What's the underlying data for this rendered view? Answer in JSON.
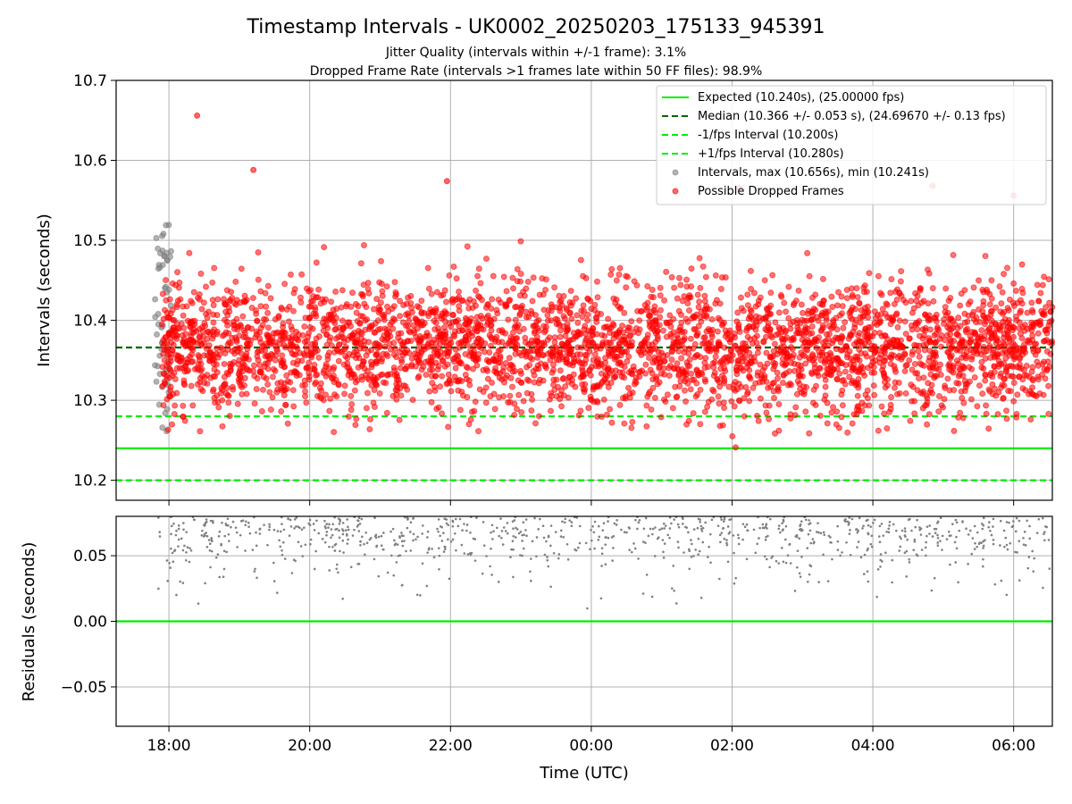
{
  "chart_data": [
    {
      "type": "scatter",
      "title": "Timestamp Intervals - UK0002_20250203_175133_945391",
      "subtitle_1": "Jitter Quality (intervals within +/-1 frame): 3.1%",
      "subtitle_2": "Dropped Frame Rate (intervals >1 frames late within 50 FF files): 98.9%",
      "ylabel": "Intervals (seconds)",
      "ylim": [
        10.175,
        10.7
      ],
      "xlim_hours": [
        17.25,
        30.55
      ],
      "yticks": [
        "10.2",
        "10.3",
        "10.4",
        "10.5",
        "10.6",
        "10.7"
      ],
      "grid": true,
      "legend_location": "upper right",
      "reference_lines": [
        {
          "name": "Expected (10.240s), (25.00000 fps)",
          "y": 10.24,
          "style": "solid",
          "color": "#00ee00"
        },
        {
          "name": "Median (10.366 +/- 0.053 s), (24.69670 +/- 0.13 fps)",
          "y": 10.366,
          "style": "dashed",
          "color": "#006400"
        },
        {
          "name": "-1/fps Interval (10.200s)",
          "y": 10.2,
          "style": "dashed",
          "color": "#00ee00"
        },
        {
          "name": "+1/fps Interval (10.280s)",
          "y": 10.28,
          "style": "dashed",
          "color": "#00ee00"
        }
      ],
      "series": [
        {
          "name": "Intervals, max (10.656s), min (10.241s)",
          "color": "#808080",
          "x_range_hours": [
            17.8,
            18.05
          ],
          "y_range": [
            10.26,
            10.52
          ]
        },
        {
          "name": "Possible Dropped Frames",
          "color": "#ff0000",
          "x_range_hours": [
            17.9,
            30.55
          ],
          "y_center": 10.366,
          "y_spread": 0.053,
          "outliers": [
            [
              18.4,
              10.656
            ],
            [
              19.2,
              10.588
            ],
            [
              21.95,
              10.574
            ],
            [
              26.1,
              10.566
            ],
            [
              28.85,
              10.568
            ],
            [
              30.0,
              10.556
            ],
            [
              26.05,
              10.241
            ]
          ]
        }
      ]
    },
    {
      "type": "scatter",
      "ylabel": "Residuals (seconds)",
      "xlabel": "Time (UTC)",
      "ylim": [
        -0.08,
        0.08
      ],
      "yticks": [
        "−0.05",
        "0.00",
        "0.05"
      ],
      "xticks": [
        "18:00",
        "20:00",
        "22:00",
        "00:00",
        "02:00",
        "04:00",
        "06:00"
      ],
      "grid": true,
      "zero_line_color": "#00ee00",
      "series": [
        {
          "name": "",
          "color": "#808080",
          "x_range_hours": [
            17.85,
            30.55
          ],
          "y_range": [
            0.0,
            0.08
          ]
        }
      ]
    }
  ],
  "colors": {
    "dropped": "#ff0000",
    "intervals": "#808080",
    "expected": "#00ee00",
    "median": "#006400",
    "grid": "#b0b0b0"
  }
}
